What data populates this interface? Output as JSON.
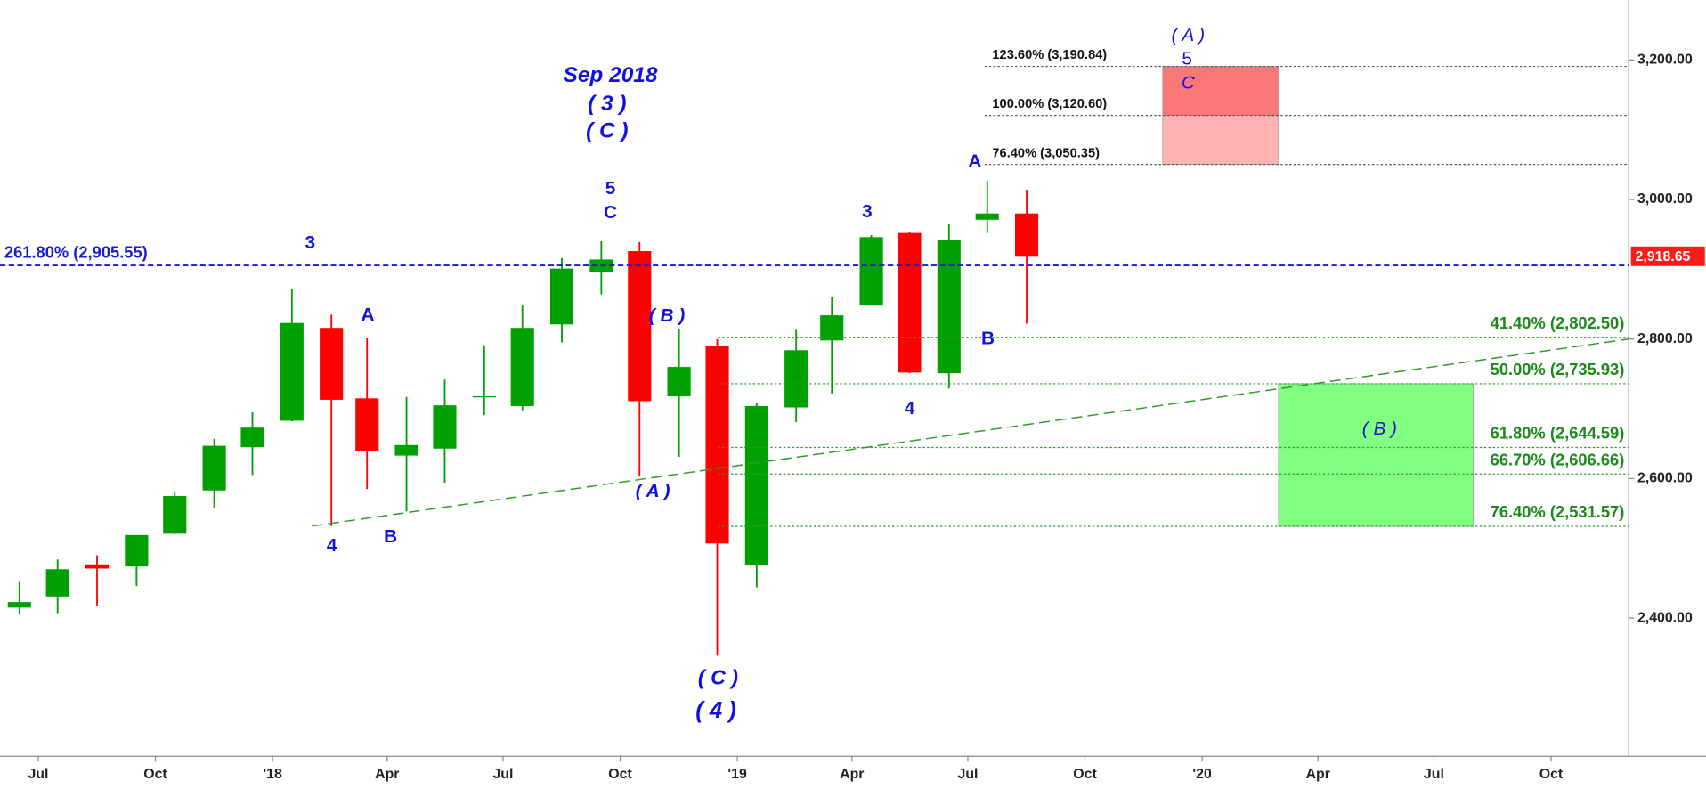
{
  "chart_data": {
    "type": "candlestick",
    "x": [
      "2017-06",
      "2017-07",
      "2017-08",
      "2017-09",
      "2017-10",
      "2017-11",
      "2017-12",
      "2018-01",
      "2018-02",
      "2018-03",
      "2018-04",
      "2018-05",
      "2018-06",
      "2018-07",
      "2018-08",
      "2018-09",
      "2018-10",
      "2018-11",
      "2018-12",
      "2019-01",
      "2019-02",
      "2019-03",
      "2019-04",
      "2019-05",
      "2019-06",
      "2019-07",
      "2019-08"
    ],
    "open": [
      2415,
      2431,
      2477,
      2474,
      2521,
      2583,
      2645,
      2683,
      2816,
      2715,
      2633,
      2643,
      2718,
      2704,
      2821,
      2896,
      2926,
      2718,
      2790,
      2476,
      2702,
      2798,
      2848,
      2952,
      2751,
      2971,
      2980
    ],
    "high": [
      2453,
      2484,
      2490,
      2519,
      2582,
      2657,
      2695,
      2872,
      2835,
      2801,
      2717,
      2742,
      2791,
      2848,
      2916,
      2940,
      2939,
      2815,
      2800,
      2708,
      2813,
      2860,
      2949,
      2954,
      2965,
      3027,
      3014
    ],
    "low": [
      2405,
      2407,
      2417,
      2446,
      2520,
      2557,
      2605,
      2682,
      2532,
      2585,
      2553,
      2594,
      2691,
      2698,
      2795,
      2864,
      2603,
      2631,
      2346,
      2444,
      2681,
      2722,
      2848,
      2751,
      2729,
      2952,
      2822
    ],
    "close": [
      2423,
      2470,
      2471,
      2519,
      2575,
      2647,
      2673,
      2823,
      2713,
      2640,
      2648,
      2705,
      2718,
      2816,
      2901,
      2914,
      2711,
      2760,
      2507,
      2704,
      2784,
      2834,
      2946,
      2752,
      2942,
      2980,
      2918
    ],
    "up_color": "#00a000",
    "down_color": "#ff0000",
    "xlim": [
      "2017-06",
      "2020-12"
    ],
    "xticks": [
      {
        "value": "2017-07",
        "label": "Jul"
      },
      {
        "value": "2017-10",
        "label": "Oct"
      },
      {
        "value": "2018-01",
        "label": "'18"
      },
      {
        "value": "2018-04",
        "label": "Apr"
      },
      {
        "value": "2018-07",
        "label": "Jul"
      },
      {
        "value": "2018-10",
        "label": "Oct"
      },
      {
        "value": "2019-01",
        "label": "'19"
      },
      {
        "value": "2019-04",
        "label": "Apr"
      },
      {
        "value": "2019-07",
        "label": "Jul"
      },
      {
        "value": "2019-10",
        "label": "Oct"
      },
      {
        "value": "2020-01",
        "label": "'20"
      },
      {
        "value": "2020-04",
        "label": "Apr"
      },
      {
        "value": "2020-07",
        "label": "Jul"
      },
      {
        "value": "2020-10",
        "label": "Oct"
      }
    ],
    "ylim": [
      2202,
      3286
    ],
    "yticks": [
      {
        "value": 2400,
        "label": "2,400.00"
      },
      {
        "value": 2600,
        "label": "2,600.00"
      },
      {
        "value": 2800,
        "label": "2,800.00"
      },
      {
        "value": 3000,
        "label": "3,000.00"
      },
      {
        "value": 3200,
        "label": "3,200.00"
      }
    ],
    "annotations": [
      "3",
      "A",
      "4",
      "B",
      "Sep 2018",
      "( 3 )",
      "( C )",
      "5",
      "C",
      "( B )",
      "( A )",
      "( C )",
      "( 4 )",
      "3",
      "4",
      "A",
      "B",
      "( A )",
      "5",
      "C",
      "( B )"
    ],
    "fib_levels_upper": [
      {
        "value": 3190.84,
        "label": "123.60% (3,190.84)"
      },
      {
        "value": 3120.6,
        "label": "100.00% (3,120.60)"
      },
      {
        "value": 3050.35,
        "label": "76.40% (3,050.35)"
      }
    ],
    "fib_levels_lower": [
      {
        "value": 2802.5,
        "label": "41.40% (2,802.50)"
      },
      {
        "value": 2735.93,
        "label": "50.00% (2,735.93)"
      },
      {
        "value": 2644.59,
        "label": "61.80% (2,644.59)"
      },
      {
        "value": 2606.66,
        "label": "66.70% (2,606.66)"
      },
      {
        "value": 2531.57,
        "label": "76.40% (2,531.57)"
      }
    ],
    "level": {
      "value": 2905.55,
      "label": "261.80% (2,905.55)"
    },
    "last_price": {
      "value": 2918.65,
      "label": "2,918.65"
    },
    "zones": [
      {
        "x": [
          "2019-12",
          "2020-03"
        ],
        "ylim": [
          3120.6,
          3190.84
        ],
        "color": "#f87878"
      },
      {
        "x": [
          "2019-12",
          "2020-03"
        ],
        "ylim": [
          3050.35,
          3120.6
        ],
        "color": "#ffb4b4"
      },
      {
        "x": [
          "2020-03",
          "2020-08"
        ],
        "ylim": [
          2531.57,
          2735.93
        ],
        "color": "#80ff80"
      }
    ],
    "trendline": {
      "x": [
        "2018-02",
        "2020-12"
      ],
      "values": [
        2532,
        2800
      ],
      "color": "#2e9a2e"
    }
  }
}
